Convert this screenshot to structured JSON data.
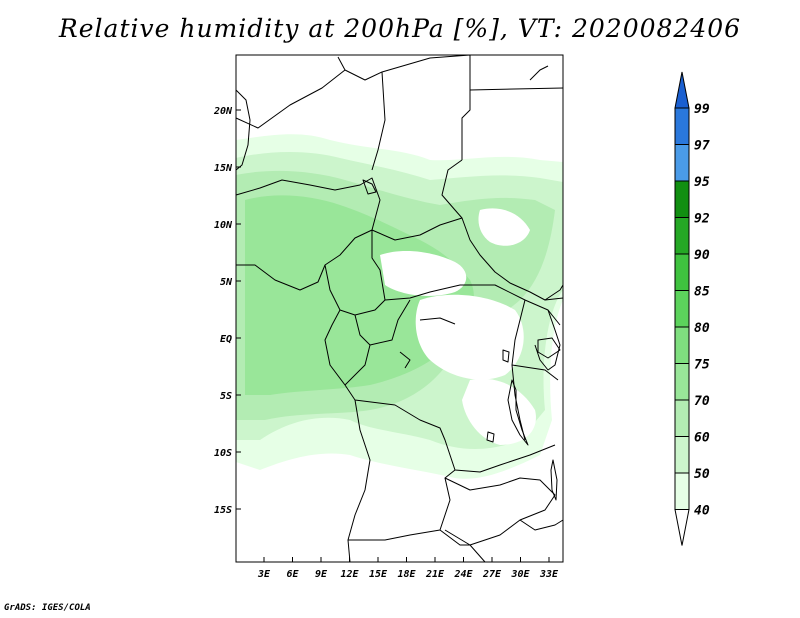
{
  "title": "Relative humidity at 200hPa [%], VT: 2020082406",
  "footer": "GrADS: IGES/COLA",
  "map": {
    "lat_ticks": [
      "20N",
      "15N",
      "10N",
      "5N",
      "EQ",
      "5S",
      "10S",
      "15S"
    ],
    "lon_ticks": [
      "3E",
      "6E",
      "9E",
      "12E",
      "15E",
      "18E",
      "21E",
      "24E",
      "27E",
      "30E",
      "33E"
    ]
  },
  "colorbar": {
    "levels": [
      "40",
      "50",
      "60",
      "70",
      "75",
      "80",
      "85",
      "90",
      "92",
      "95",
      "97",
      "99"
    ],
    "colors": [
      "#e6ffe6",
      "#ccf5cc",
      "#b3ecb3",
      "#99e699",
      "#7fdf7f",
      "#5cd35c",
      "#3fc23f",
      "#25a825",
      "#118f11",
      "#4a9be8",
      "#2a78dc",
      "#1a5fd0"
    ],
    "below_color": "#ffffff"
  }
}
